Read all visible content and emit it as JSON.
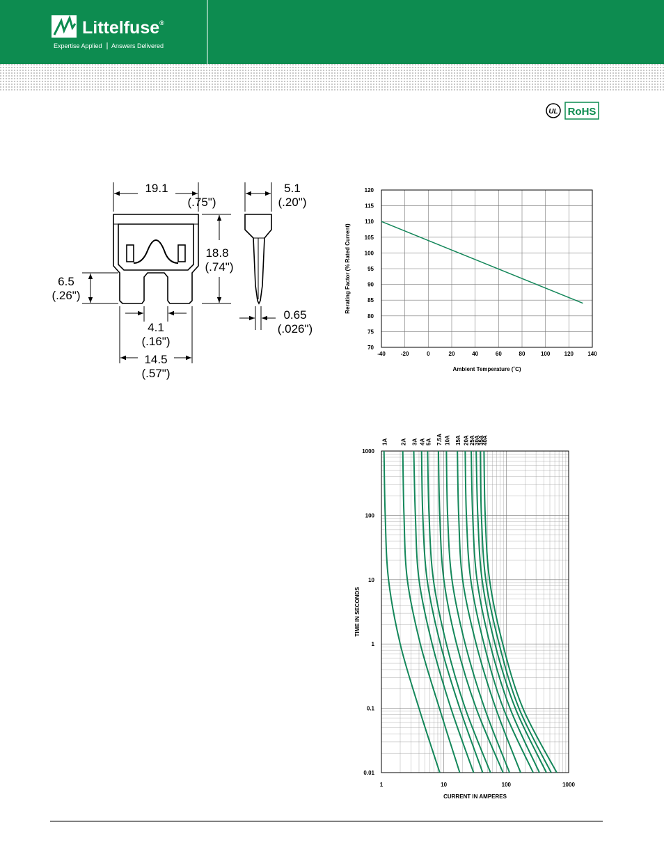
{
  "header": {
    "brand": "Littelfuse",
    "registered": "®",
    "tagline_left": "Expertise Applied",
    "tagline_right": "Answers Delivered"
  },
  "badges": {
    "ul": "UL",
    "rohs": "RoHS"
  },
  "drawing": {
    "dimensions": [
      [
        "19.1",
        "(.75\")"
      ],
      [
        "5.1",
        "(.20\")"
      ],
      [
        "18.8",
        "(.74\")"
      ],
      [
        "6.5",
        "(.26\")"
      ],
      [
        "0.65",
        "(.026\")"
      ],
      [
        "4.1",
        "(.16\")"
      ],
      [
        "14.5",
        "(.57\")"
      ]
    ]
  },
  "chart_data": [
    {
      "type": "line",
      "x_label": "Ambient Temperature (˚C)",
      "y_label": "Rerating Factor (% Rated Current)",
      "x": [
        -40,
        132
      ],
      "series": [
        {
          "color": "#14875a",
          "values": [
            110,
            84
          ]
        }
      ],
      "xlim": [
        -40,
        140
      ],
      "xticks": [
        -40,
        -20,
        0,
        20,
        40,
        60,
        80,
        100,
        120,
        140
      ],
      "ylim": [
        70,
        120
      ],
      "yticks": [
        70,
        75,
        80,
        85,
        90,
        95,
        100,
        105,
        110,
        115,
        120
      ],
      "grid": true
    },
    {
      "type": "line",
      "x_label": "CURRENT IN AMPERES",
      "y_label": "TIME IN SECONDS",
      "x_log": true,
      "y_log": true,
      "grid": true,
      "minor_grid": true,
      "xlim": [
        1,
        1000
      ],
      "xticks": [
        1,
        10,
        100,
        1000
      ],
      "ylim": [
        0.01,
        1000
      ],
      "yticks": [
        0.01,
        0.1,
        1,
        10,
        100,
        1000
      ],
      "series": [
        {
          "name": "1A",
          "color": "#14875a",
          "x": [
            1.1,
            1.15,
            1.3,
            2,
            4,
            8.6
          ],
          "values": [
            1000,
            100,
            10,
            1,
            0.1,
            0.01
          ]
        },
        {
          "name": "2A",
          "color": "#14875a",
          "x": [
            2.2,
            2.3,
            2.6,
            4.2,
            8.5,
            18
          ],
          "values": [
            1000,
            100,
            10,
            1,
            0.1,
            0.01
          ]
        },
        {
          "name": "3A",
          "color": "#14875a",
          "x": [
            3.3,
            3.5,
            4,
            6.5,
            13,
            30
          ],
          "values": [
            1000,
            100,
            10,
            1,
            0.1,
            0.01
          ]
        },
        {
          "name": "4A",
          "color": "#14875a",
          "x": [
            4.4,
            4.6,
            5.4,
            8.8,
            18,
            42
          ],
          "values": [
            1000,
            100,
            10,
            1,
            0.1,
            0.01
          ]
        },
        {
          "name": "5A",
          "color": "#14875a",
          "x": [
            5.5,
            5.8,
            6.8,
            11,
            22,
            56
          ],
          "values": [
            1000,
            100,
            10,
            1,
            0.1,
            0.01
          ]
        },
        {
          "name": "7.5A",
          "color": "#14875a",
          "x": [
            8.2,
            8.6,
            10,
            16,
            33,
            89
          ],
          "values": [
            1000,
            100,
            10,
            1,
            0.1,
            0.01
          ]
        },
        {
          "name": "10A",
          "color": "#14875a",
          "x": [
            11,
            11.5,
            13.5,
            22,
            45,
            113
          ],
          "values": [
            1000,
            100,
            10,
            1,
            0.1,
            0.01
          ]
        },
        {
          "name": "15A",
          "color": "#14875a",
          "x": [
            16.5,
            17.3,
            20,
            33,
            68,
            170
          ],
          "values": [
            1000,
            100,
            10,
            1,
            0.1,
            0.01
          ]
        },
        {
          "name": "20A",
          "color": "#14875a",
          "x": [
            22,
            23,
            27,
            44,
            90,
            270
          ],
          "values": [
            1000,
            100,
            10,
            1,
            0.1,
            0.01
          ]
        },
        {
          "name": "25A",
          "color": "#14875a",
          "x": [
            27.5,
            29,
            34,
            55,
            115,
            340
          ],
          "values": [
            1000,
            100,
            10,
            1,
            0.1,
            0.01
          ]
        },
        {
          "name": "30A",
          "color": "#14875a",
          "x": [
            33,
            35,
            41,
            66,
            140,
            440
          ],
          "values": [
            1000,
            100,
            10,
            1,
            0.1,
            0.01
          ]
        },
        {
          "name": "35A",
          "color": "#14875a",
          "x": [
            38.5,
            40,
            47,
            77,
            160,
            525
          ],
          "values": [
            1000,
            100,
            10,
            1,
            0.1,
            0.01
          ]
        },
        {
          "name": "40A",
          "color": "#14875a",
          "x": [
            44,
            46,
            54,
            88,
            185,
            645
          ],
          "values": [
            1000,
            100,
            10,
            1,
            0.1,
            0.01
          ]
        }
      ]
    }
  ]
}
